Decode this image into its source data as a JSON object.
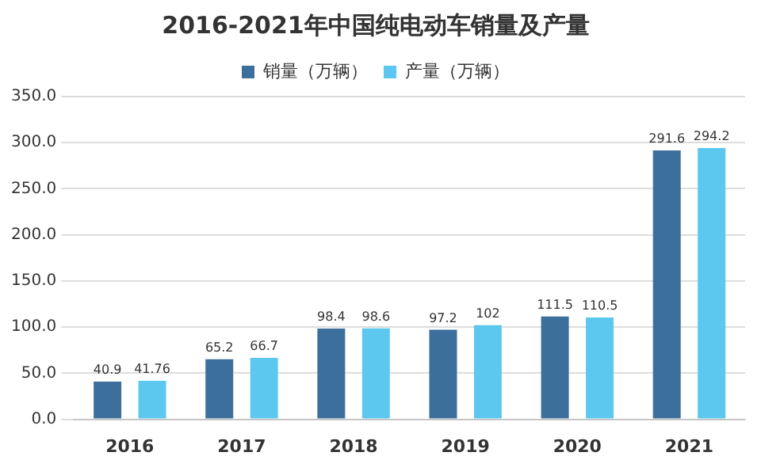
{
  "chart_data": {
    "type": "bar",
    "title": "2016-2021年中国纯电动车销量及产量",
    "categories": [
      "2016",
      "2017",
      "2018",
      "2019",
      "2020",
      "2021"
    ],
    "series": [
      {
        "name": "销量（万辆）",
        "color": "#3d6f9c",
        "values": [
          40.9,
          65.2,
          98.4,
          97.2,
          111.5,
          291.6
        ]
      },
      {
        "name": "产量（万辆）",
        "color": "#5cc8f0",
        "values": [
          41.76,
          66.7,
          98.6,
          102,
          110.5,
          294.2
        ]
      }
    ],
    "ylim": [
      0,
      350
    ],
    "yticks": [
      {
        "value": 0,
        "label": "0.0"
      },
      {
        "value": 50,
        "label": "50.0"
      },
      {
        "value": 100,
        "label": "100.0"
      },
      {
        "value": 150,
        "label": "150.0"
      },
      {
        "value": 200,
        "label": "200.0"
      },
      {
        "value": 250,
        "label": "250.0"
      },
      {
        "value": 300,
        "label": "300.0"
      },
      {
        "value": 350,
        "label": "350.0"
      }
    ],
    "grid": "y",
    "legend": "top",
    "data_labels": true
  }
}
